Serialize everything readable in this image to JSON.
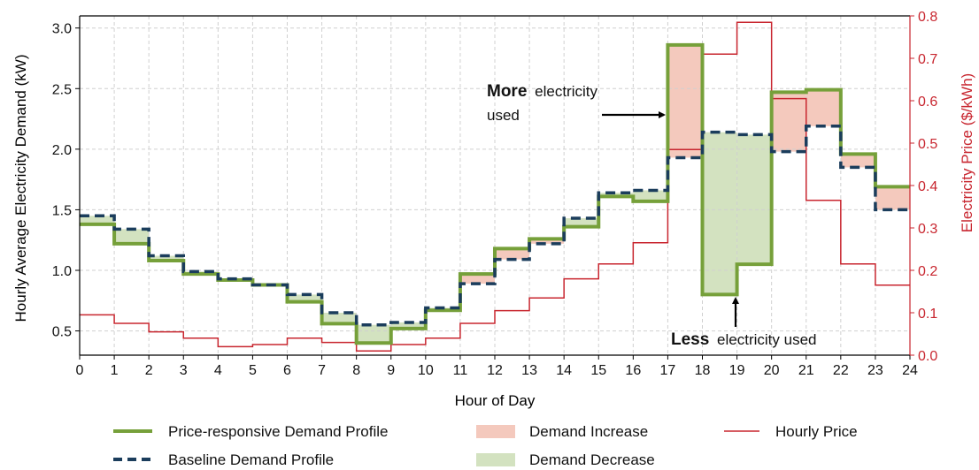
{
  "chart_data": {
    "type": "line",
    "xlabel": "Hour of Day",
    "ylabel": "Hourly Average Electricity Demand (kW)",
    "y2label": "Electricity Price ($/kWh)",
    "xlim": [
      0,
      24
    ],
    "ylim": [
      0.3,
      3.1
    ],
    "y2lim": [
      0.0,
      0.8
    ],
    "grid": true,
    "legend_position": "bottom",
    "x_ticks": [
      "0",
      "1",
      "2",
      "3",
      "4",
      "5",
      "6",
      "7",
      "8",
      "9",
      "10",
      "11",
      "12",
      "13",
      "14",
      "15",
      "16",
      "17",
      "18",
      "19",
      "20",
      "21",
      "22",
      "23",
      "24"
    ],
    "y_ticks": [
      "0.5",
      "1.0",
      "1.5",
      "2.0",
      "2.5",
      "3.0"
    ],
    "y2_ticks": [
      "0.0",
      "0.1",
      "0.2",
      "0.3",
      "0.4",
      "0.5",
      "0.6",
      "0.7",
      "0.8"
    ],
    "hours": [
      0,
      1,
      2,
      3,
      4,
      5,
      6,
      7,
      8,
      9,
      10,
      11,
      12,
      13,
      14,
      15,
      16,
      17,
      18,
      19,
      20,
      21,
      22,
      23
    ],
    "series": [
      {
        "name": "Price-responsive Demand Profile",
        "axis": "left",
        "values": [
          1.38,
          1.22,
          1.08,
          0.97,
          0.92,
          0.88,
          0.74,
          0.56,
          0.4,
          0.52,
          0.67,
          0.97,
          1.18,
          1.26,
          1.36,
          1.61,
          1.57,
          2.86,
          0.8,
          1.05,
          2.47,
          2.49,
          1.96,
          1.69
        ]
      },
      {
        "name": "Baseline Demand Profile",
        "axis": "left",
        "values": [
          1.45,
          1.34,
          1.12,
          0.99,
          0.93,
          0.88,
          0.8,
          0.65,
          0.55,
          0.57,
          0.69,
          0.89,
          1.09,
          1.22,
          1.43,
          1.64,
          1.66,
          1.93,
          2.14,
          2.12,
          1.98,
          2.19,
          1.85,
          1.5
        ]
      },
      {
        "name": "Hourly Price",
        "axis": "right",
        "values": [
          0.095,
          0.075,
          0.055,
          0.04,
          0.02,
          0.025,
          0.04,
          0.03,
          0.01,
          0.025,
          0.04,
          0.075,
          0.105,
          0.135,
          0.18,
          0.215,
          0.265,
          0.485,
          0.71,
          0.785,
          0.605,
          0.365,
          0.215,
          0.165
        ]
      }
    ],
    "fill_legend": [
      {
        "name": "Demand Increase",
        "color": "#f4c9bd"
      },
      {
        "name": "Demand Decrease",
        "color": "#d3e2c0"
      }
    ],
    "annotations": [
      {
        "bold": "More",
        "text": "electricity",
        "text2": "used"
      },
      {
        "bold": "Less",
        "text": "electricity used"
      }
    ]
  },
  "colors": {
    "responsive": "#76a03a",
    "baseline": "#1b3d5c",
    "price": "#c8262f",
    "increase_fill": "#f4c9bd",
    "decrease_fill": "#d3e2c0",
    "grid": "#d0d0d0",
    "right_axis": "#c8262f"
  }
}
